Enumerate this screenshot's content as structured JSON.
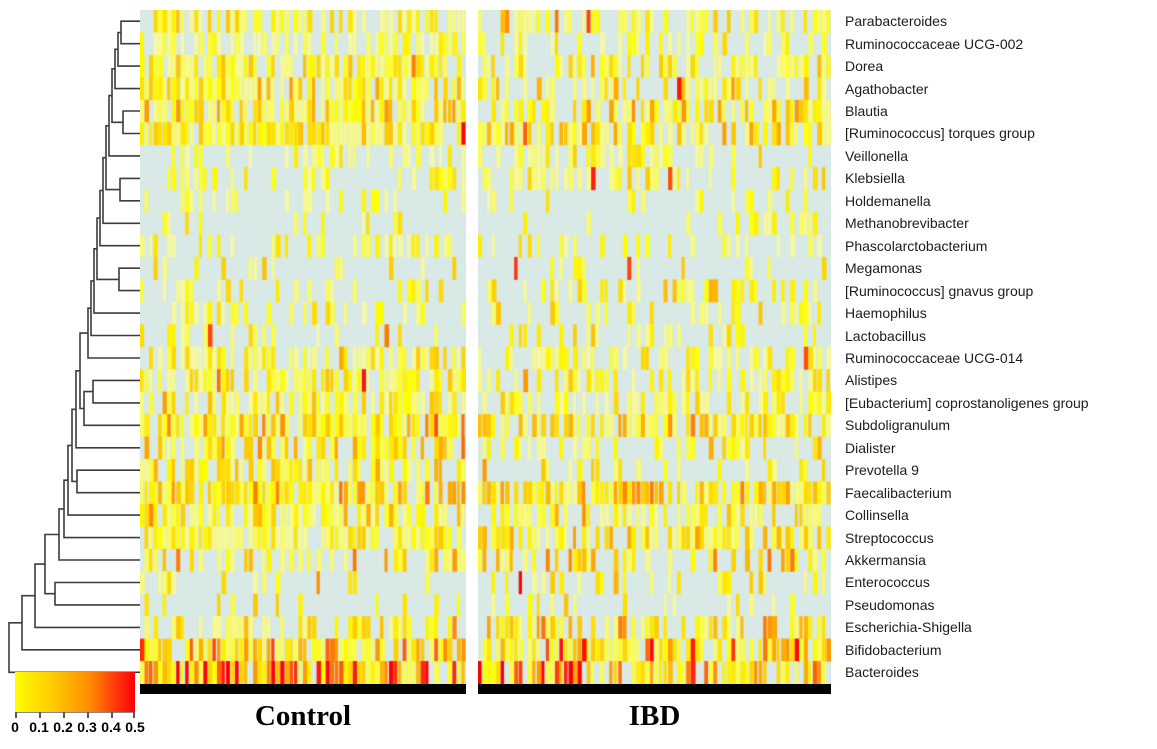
{
  "chart_data": {
    "type": "heatmap",
    "title": "",
    "value_range": [
      0,
      0.5
    ],
    "legend_position": "bottom-left",
    "groups": [
      {
        "label": "Control",
        "samples": 72
      },
      {
        "label": "IBD",
        "samples": 78
      }
    ],
    "colorbar": {
      "tick_labels": [
        "0",
        "0.1",
        "0.2",
        "0.3",
        "0.4",
        "0.5"
      ]
    },
    "colors": {
      "background_zero": "#d8e9e6",
      "colormap": [
        {
          "t": 0.0,
          "c": [
            242,
            246,
            205
          ]
        },
        {
          "t": 0.16,
          "c": [
            255,
            255,
            0
          ]
        },
        {
          "t": 0.45,
          "c": [
            255,
            196,
            0
          ]
        },
        {
          "t": 0.68,
          "c": [
            255,
            140,
            0
          ]
        },
        {
          "t": 0.86,
          "c": [
            255,
            60,
            10
          ]
        },
        {
          "t": 1.0,
          "c": [
            252,
            0,
            8
          ]
        }
      ]
    },
    "rows": [
      {
        "name": "Parabacteroides",
        "control": {
          "density": 0.7,
          "mean": 0.08,
          "hot": 0.01
        },
        "ibd": {
          "density": 0.5,
          "mean": 0.08,
          "hot": 0.02
        }
      },
      {
        "name": "Ruminococcaceae UCG-002",
        "control": {
          "density": 0.55,
          "mean": 0.05,
          "hot": 0.0
        },
        "ibd": {
          "density": 0.45,
          "mean": 0.06,
          "hot": 0.01
        }
      },
      {
        "name": "Dorea",
        "control": {
          "density": 0.8,
          "mean": 0.08,
          "hot": 0.01
        },
        "ibd": {
          "density": 0.62,
          "mean": 0.09,
          "hot": 0.01
        }
      },
      {
        "name": "Agathobacter",
        "control": {
          "density": 0.85,
          "mean": 0.1,
          "hot": 0.01
        },
        "ibd": {
          "density": 0.58,
          "mean": 0.1,
          "hot": 0.01
        }
      },
      {
        "name": "Blautia",
        "control": {
          "density": 0.9,
          "mean": 0.11,
          "hot": 0.01
        },
        "ibd": {
          "density": 0.72,
          "mean": 0.11,
          "hot": 0.01
        }
      },
      {
        "name": "[Ruminococcus] torques group",
        "control": {
          "density": 0.78,
          "mean": 0.08,
          "hot": 0.01
        },
        "ibd": {
          "density": 0.65,
          "mean": 0.1,
          "hot": 0.02
        }
      },
      {
        "name": "Veillonella",
        "control": {
          "density": 0.35,
          "mean": 0.05,
          "hot": 0.01
        },
        "ibd": {
          "density": 0.45,
          "mean": 0.07,
          "hot": 0.02
        }
      },
      {
        "name": "Klebsiella",
        "control": {
          "density": 0.4,
          "mean": 0.06,
          "hot": 0.02
        },
        "ibd": {
          "density": 0.5,
          "mean": 0.08,
          "hot": 0.03
        }
      },
      {
        "name": "Holdemanella",
        "control": {
          "density": 0.3,
          "mean": 0.06,
          "hot": 0.01
        },
        "ibd": {
          "density": 0.25,
          "mean": 0.07,
          "hot": 0.02
        }
      },
      {
        "name": "Methanobrevibacter",
        "control": {
          "density": 0.18,
          "mean": 0.06,
          "hot": 0.01
        },
        "ibd": {
          "density": 0.15,
          "mean": 0.06,
          "hot": 0.01
        }
      },
      {
        "name": "Phascolarctobacterium",
        "control": {
          "density": 0.35,
          "mean": 0.06,
          "hot": 0.01
        },
        "ibd": {
          "density": 0.28,
          "mean": 0.06,
          "hot": 0.01
        }
      },
      {
        "name": "Megamonas",
        "control": {
          "density": 0.15,
          "mean": 0.08,
          "hot": 0.03
        },
        "ibd": {
          "density": 0.12,
          "mean": 0.08,
          "hot": 0.02
        }
      },
      {
        "name": "[Ruminococcus] gnavus group",
        "control": {
          "density": 0.3,
          "mean": 0.06,
          "hot": 0.01
        },
        "ibd": {
          "density": 0.5,
          "mean": 0.09,
          "hot": 0.03
        }
      },
      {
        "name": "Haemophilus",
        "control": {
          "density": 0.35,
          "mean": 0.06,
          "hot": 0.01
        },
        "ibd": {
          "density": 0.35,
          "mean": 0.08,
          "hot": 0.02
        }
      },
      {
        "name": "Lactobacillus",
        "control": {
          "density": 0.25,
          "mean": 0.06,
          "hot": 0.02
        },
        "ibd": {
          "density": 0.3,
          "mean": 0.08,
          "hot": 0.04
        }
      },
      {
        "name": "Ruminococcaceae UCG-014",
        "control": {
          "density": 0.65,
          "mean": 0.07,
          "hot": 0.01
        },
        "ibd": {
          "density": 0.5,
          "mean": 0.07,
          "hot": 0.01
        }
      },
      {
        "name": "Alistipes",
        "control": {
          "density": 0.8,
          "mean": 0.08,
          "hot": 0.01
        },
        "ibd": {
          "density": 0.6,
          "mean": 0.07,
          "hot": 0.01
        }
      },
      {
        "name": "[Eubacterium] coprostanoligenes group",
        "control": {
          "density": 0.7,
          "mean": 0.08,
          "hot": 0.01
        },
        "ibd": {
          "density": 0.5,
          "mean": 0.07,
          "hot": 0.01
        }
      },
      {
        "name": "Subdoligranulum",
        "control": {
          "density": 0.85,
          "mean": 0.12,
          "hot": 0.02
        },
        "ibd": {
          "density": 0.75,
          "mean": 0.1,
          "hot": 0.02
        }
      },
      {
        "name": "Dialister",
        "control": {
          "density": 0.6,
          "mean": 0.1,
          "hot": 0.02
        },
        "ibd": {
          "density": 0.45,
          "mean": 0.09,
          "hot": 0.02
        }
      },
      {
        "name": "Prevotella 9",
        "control": {
          "density": 0.6,
          "mean": 0.1,
          "hot": 0.03
        },
        "ibd": {
          "density": 0.4,
          "mean": 0.1,
          "hot": 0.03
        }
      },
      {
        "name": "Faecalibacterium",
        "control": {
          "density": 0.9,
          "mean": 0.12,
          "hot": 0.02
        },
        "ibd": {
          "density": 0.85,
          "mean": 0.12,
          "hot": 0.02
        }
      },
      {
        "name": "Collinsella",
        "control": {
          "density": 0.8,
          "mean": 0.09,
          "hot": 0.01
        },
        "ibd": {
          "density": 0.65,
          "mean": 0.09,
          "hot": 0.02
        }
      },
      {
        "name": "Streptococcus",
        "control": {
          "density": 0.75,
          "mean": 0.08,
          "hot": 0.01
        },
        "ibd": {
          "density": 0.7,
          "mean": 0.1,
          "hot": 0.02
        }
      },
      {
        "name": "Akkermansia",
        "control": {
          "density": 0.45,
          "mean": 0.12,
          "hot": 0.05
        },
        "ibd": {
          "density": 0.4,
          "mean": 0.12,
          "hot": 0.06
        }
      },
      {
        "name": "Enterococcus",
        "control": {
          "density": 0.2,
          "mean": 0.07,
          "hot": 0.02
        },
        "ibd": {
          "density": 0.35,
          "mean": 0.09,
          "hot": 0.04
        }
      },
      {
        "name": "Pseudomonas",
        "control": {
          "density": 0.18,
          "mean": 0.08,
          "hot": 0.04
        },
        "ibd": {
          "density": 0.12,
          "mean": 0.08,
          "hot": 0.03
        }
      },
      {
        "name": "Escherichia-Shigella",
        "control": {
          "density": 0.5,
          "mean": 0.08,
          "hot": 0.02
        },
        "ibd": {
          "density": 0.6,
          "mean": 0.12,
          "hot": 0.05
        }
      },
      {
        "name": "Bifidobacterium",
        "control": {
          "density": 0.85,
          "mean": 0.15,
          "hot": 0.04
        },
        "ibd": {
          "density": 0.85,
          "mean": 0.16,
          "hot": 0.05
        }
      },
      {
        "name": "Bacteroides",
        "control": {
          "density": 0.95,
          "mean": 0.2,
          "hot": 0.06
        },
        "ibd": {
          "density": 0.85,
          "mean": 0.2,
          "hot": 0.06
        }
      }
    ],
    "dendrogram": {
      "merges": [
        [
          0,
          1,
          19
        ],
        [
          30,
          2,
          22
        ],
        [
          31,
          3,
          25
        ],
        [
          4,
          5,
          17
        ],
        [
          32,
          33,
          28
        ],
        [
          34,
          6,
          31
        ],
        [
          7,
          8,
          20
        ],
        [
          35,
          36,
          34
        ],
        [
          37,
          9,
          37
        ],
        [
          38,
          10,
          40
        ],
        [
          11,
          12,
          21
        ],
        [
          39,
          40,
          43
        ],
        [
          41,
          13,
          46
        ],
        [
          42,
          14,
          49
        ],
        [
          43,
          15,
          52
        ],
        [
          16,
          17,
          47
        ],
        [
          45,
          18,
          56
        ],
        [
          44,
          46,
          60
        ],
        [
          47,
          19,
          64
        ],
        [
          20,
          21,
          63
        ],
        [
          48,
          49,
          68
        ],
        [
          50,
          22,
          72
        ],
        [
          51,
          23,
          76
        ],
        [
          52,
          24,
          81
        ],
        [
          25,
          26,
          85
        ],
        [
          53,
          54,
          95
        ],
        [
          55,
          27,
          105
        ],
        [
          56,
          28,
          118
        ],
        [
          57,
          29,
          131
        ]
      ]
    }
  }
}
